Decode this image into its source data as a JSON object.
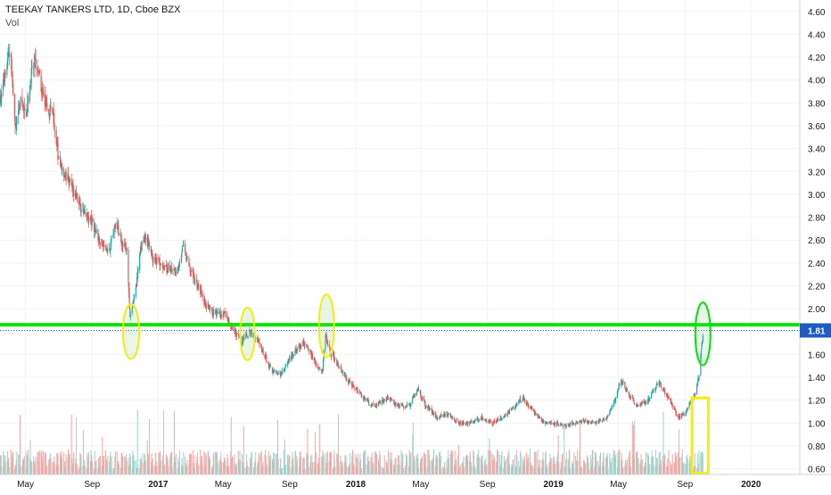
{
  "header": {
    "symbol_line": "TEEKAY TANKERS LTD, 1D, Cboe BZX",
    "volume_label": "Vol"
  },
  "colors": {
    "up": "#26a69a",
    "down": "#ef5350",
    "up_volume": "#9fd3cc",
    "down_volume": "#f4a8a6",
    "support_line": "#00e600",
    "circle_yellow": "#f2f200",
    "circle_green": "#00e600",
    "price_tag": "#1e5bc6",
    "grid": "#f0f3fa",
    "axis_text": "#131722"
  },
  "chart_data": {
    "type": "candlestick",
    "title": "TEEKAY TANKERS LTD, 1D, Cboe BZX",
    "ylim": [
      0.55,
      4.7
    ],
    "y_ticks": [
      "4.60",
      "4.40",
      "4.20",
      "4.00",
      "3.80",
      "3.60",
      "3.40",
      "3.20",
      "3.00",
      "2.80",
      "2.60",
      "2.40",
      "2.20",
      "2.00",
      "1.80",
      "1.60",
      "1.40",
      "1.20",
      "1.00",
      "0.80",
      "0.60"
    ],
    "x_ticks": [
      "May",
      "Sep",
      "2017",
      "May",
      "Sep",
      "2018",
      "May",
      "Sep",
      "2019",
      "May",
      "Sep",
      "2020"
    ],
    "x_range": [
      "2016-03-15",
      "2020-03-31"
    ],
    "last_price": 1.81,
    "last_price_label": "1.81",
    "horizontal_line_level": 1.86,
    "price_path": [
      [
        "2016-03-15",
        3.8
      ],
      [
        "2016-03-25",
        4.1
      ],
      [
        "2016-04-03",
        4.3
      ],
      [
        "2016-04-12",
        3.55
      ],
      [
        "2016-04-22",
        3.8
      ],
      [
        "2016-05-02",
        3.7
      ],
      [
        "2016-05-12",
        4.05
      ],
      [
        "2016-05-20",
        4.15
      ],
      [
        "2016-06-01",
        3.9
      ],
      [
        "2016-06-10",
        3.7
      ],
      [
        "2016-06-20",
        3.75
      ],
      [
        "2016-07-01",
        3.3
      ],
      [
        "2016-07-15",
        3.15
      ],
      [
        "2016-08-01",
        3.0
      ],
      [
        "2016-08-15",
        2.85
      ],
      [
        "2016-09-01",
        2.75
      ],
      [
        "2016-09-15",
        2.6
      ],
      [
        "2016-10-01",
        2.5
      ],
      [
        "2016-10-15",
        2.75
      ],
      [
        "2016-10-25",
        2.6
      ],
      [
        "2016-11-05",
        2.5
      ],
      [
        "2016-11-10",
        1.9
      ],
      [
        "2016-11-20",
        2.15
      ],
      [
        "2016-12-01",
        2.55
      ],
      [
        "2016-12-10",
        2.65
      ],
      [
        "2016-12-20",
        2.45
      ],
      [
        "2017-01-05",
        2.4
      ],
      [
        "2017-01-20",
        2.35
      ],
      [
        "2017-02-05",
        2.3
      ],
      [
        "2017-02-15",
        2.55
      ],
      [
        "2017-02-28",
        2.35
      ],
      [
        "2017-03-15",
        2.2
      ],
      [
        "2017-04-01",
        2.0
      ],
      [
        "2017-04-20",
        1.95
      ],
      [
        "2017-05-05",
        1.95
      ],
      [
        "2017-05-20",
        1.8
      ],
      [
        "2017-06-05",
        1.72
      ],
      [
        "2017-06-20",
        1.8
      ],
      [
        "2017-07-01",
        1.75
      ],
      [
        "2017-07-15",
        1.6
      ],
      [
        "2017-08-01",
        1.45
      ],
      [
        "2017-08-15",
        1.42
      ],
      [
        "2017-09-01",
        1.55
      ],
      [
        "2017-09-15",
        1.65
      ],
      [
        "2017-10-01",
        1.7
      ],
      [
        "2017-10-15",
        1.55
      ],
      [
        "2017-11-01",
        1.45
      ],
      [
        "2017-11-05",
        1.8
      ],
      [
        "2017-11-15",
        1.62
      ],
      [
        "2017-12-01",
        1.5
      ],
      [
        "2017-12-15",
        1.38
      ],
      [
        "2018-01-01",
        1.3
      ],
      [
        "2018-01-15",
        1.22
      ],
      [
        "2018-02-01",
        1.15
      ],
      [
        "2018-02-15",
        1.18
      ],
      [
        "2018-03-01",
        1.22
      ],
      [
        "2018-03-20",
        1.15
      ],
      [
        "2018-04-10",
        1.15
      ],
      [
        "2018-04-25",
        1.3
      ],
      [
        "2018-05-10",
        1.15
      ],
      [
        "2018-06-01",
        1.05
      ],
      [
        "2018-06-20",
        1.08
      ],
      [
        "2018-07-10",
        1.0
      ],
      [
        "2018-08-01",
        1.0
      ],
      [
        "2018-08-20",
        1.05
      ],
      [
        "2018-09-10",
        1.0
      ],
      [
        "2018-10-01",
        1.05
      ],
      [
        "2018-10-20",
        1.15
      ],
      [
        "2018-11-05",
        1.22
      ],
      [
        "2018-11-25",
        1.1
      ],
      [
        "2018-12-15",
        1.0
      ],
      [
        "2019-01-01",
        1.0
      ],
      [
        "2019-01-20",
        0.98
      ],
      [
        "2019-02-10",
        1.0
      ],
      [
        "2019-03-01",
        1.02
      ],
      [
        "2019-03-20",
        1.0
      ],
      [
        "2019-04-10",
        1.05
      ],
      [
        "2019-04-25",
        1.2
      ],
      [
        "2019-05-05",
        1.38
      ],
      [
        "2019-05-20",
        1.25
      ],
      [
        "2019-06-05",
        1.15
      ],
      [
        "2019-06-25",
        1.2
      ],
      [
        "2019-07-15",
        1.35
      ],
      [
        "2019-08-01",
        1.22
      ],
      [
        "2019-08-20",
        1.05
      ],
      [
        "2019-09-01",
        1.08
      ],
      [
        "2019-09-10",
        1.18
      ],
      [
        "2019-09-20",
        1.25
      ],
      [
        "2019-09-28",
        1.45
      ],
      [
        "2019-10-02",
        1.7
      ],
      [
        "2019-10-05",
        1.81
      ]
    ],
    "grid": true,
    "y_axis_side": "right",
    "annotations": [
      {
        "shape": "ellipse",
        "color": "yellow",
        "center": [
          "2016-11-12",
          1.8
        ],
        "span_days": 30,
        "span_price": 0.48
      },
      {
        "shape": "ellipse",
        "color": "yellow",
        "center": [
          "2017-06-15",
          1.78
        ],
        "span_days": 27,
        "span_price": 0.46
      },
      {
        "shape": "ellipse",
        "color": "yellow",
        "center": [
          "2017-11-08",
          1.85
        ],
        "span_days": 28,
        "span_price": 0.55
      },
      {
        "shape": "ellipse",
        "color": "green",
        "center": [
          "2019-10-04",
          1.78
        ],
        "span_days": 28,
        "span_price": 0.55
      },
      {
        "shape": "rectangle",
        "color": "yellow",
        "from": [
          "2019-09-14",
          0.56
        ],
        "to": [
          "2019-10-14",
          1.22
        ]
      }
    ]
  }
}
